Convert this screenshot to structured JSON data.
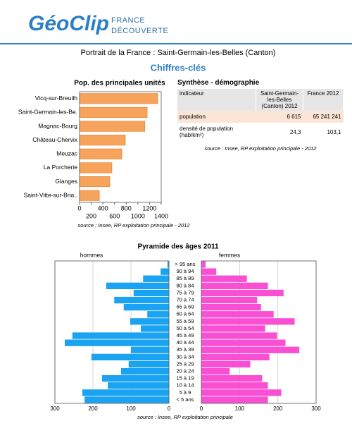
{
  "header": {
    "logo": "GéoClip",
    "tagline": [
      "FRANCE",
      "DÉCOUVERTE"
    ]
  },
  "title": "Portrait de la France : Saint-Germain-les-Belles (Canton)",
  "subtitle": "Chiffres-clés",
  "table": {
    "title": "Synthèse - démographie",
    "columns": [
      "indicateur",
      "Saint-Germain-les-Belles (Canton) 2012",
      "France 2012"
    ],
    "rows": [
      [
        "population",
        "6 615",
        "65 241 241"
      ],
      [
        "densité de population (hab/km²)",
        "24,3",
        "103,1"
      ]
    ],
    "source": "source : Insee, RP exploitation principale - 2012"
  },
  "chart_data": [
    {
      "type": "bar",
      "orientation": "horizontal",
      "title": "Pop. des principales unités",
      "categories": [
        "Vicq-sur-Breuilh",
        "Saint-Germain-les-Be.",
        "Magnac-Bourg",
        "Château-Chervix",
        "Meuzac",
        "La Porcherie",
        "Glanges",
        "Saint-Vitte-sur-Bria.."
      ],
      "values": [
        1340,
        1160,
        1120,
        785,
        725,
        555,
        520,
        340
      ],
      "color": "#f7a35c",
      "xlim": [
        0,
        1400
      ],
      "xticks": [
        0,
        200,
        400,
        600,
        800,
        1000,
        1200,
        1400
      ],
      "note": "source : Insee, RP exploitation principale - 2012"
    },
    {
      "type": "pyramid",
      "title": "Pyramide des âges 2011",
      "categories": [
        "> 95 ans",
        "90 à 94",
        "85 à 89",
        "80 à 84",
        "75 à 79",
        "70 à 74",
        "65 à 69",
        "60 à 64",
        "55 à 59",
        "50 à 54",
        "45 à 49",
        "40 à 44",
        "35 à 39",
        "30 à 34",
        "25 à 29",
        "20 à 24",
        "15 à 19",
        "10 à 14",
        "5 à 9",
        "< 5 ans"
      ],
      "series": [
        {
          "name": "hommes",
          "color": "#1aa3f2",
          "xlim": [
            300,
            0
          ],
          "xticks": [
            300,
            200,
            100,
            0
          ],
          "values": [
            4,
            22,
            68,
            165,
            93,
            144,
            119,
            57,
            102,
            74,
            254,
            274,
            100,
            204,
            106,
            126,
            176,
            161,
            228,
            222
          ]
        },
        {
          "name": "femmes",
          "color": "#f94fd3",
          "xlim": [
            0,
            300
          ],
          "xticks": [
            0,
            100,
            200,
            300
          ],
          "values": [
            11,
            39,
            119,
            174,
            215,
            146,
            156,
            189,
            244,
            167,
            198,
            220,
            256,
            178,
            128,
            74,
            159,
            174,
            209,
            174
          ]
        }
      ],
      "grid": true,
      "note": "source : Insee, RP exploitation principale"
    }
  ]
}
